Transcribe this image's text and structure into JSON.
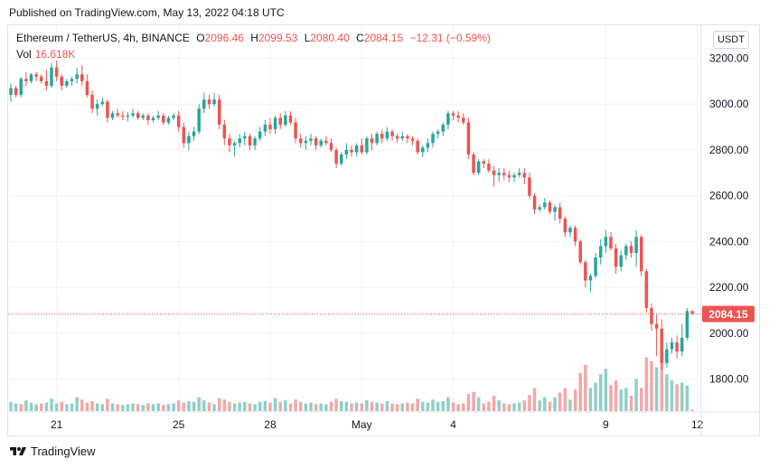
{
  "published_text": "Published on TradingView.com, May 13, 2022 04:18 UTC",
  "header": {
    "symbol": "Ethereum / TetherUS, 4h, BINANCE",
    "o_label": "O",
    "o_value": "2096.46",
    "h_label": "H",
    "h_value": "2099.53",
    "l_label": "L",
    "l_value": "2080.40",
    "c_label": "C",
    "c_value": "2084.15",
    "change": "−12.31 (−0.59%)"
  },
  "volume": {
    "label": "Vol",
    "value": "16.618K"
  },
  "currency_button": "USDT",
  "footer_brand": "TradingView",
  "colors": {
    "up": "#26a69a",
    "down": "#ef5350",
    "up_vol": "#8fcfc9",
    "down_vol": "#f4a7a6",
    "grid": "#f0f3fa",
    "price_line": "#ef5350"
  },
  "chart_data": {
    "type": "candlestick",
    "title": "Ethereum / TetherUS, 4h, BINANCE",
    "y_ticks": [
      {
        "value": 3200,
        "label": "3200.00"
      },
      {
        "value": 3000,
        "label": "3000.00"
      },
      {
        "value": 2800,
        "label": "2800.00"
      },
      {
        "value": 2600,
        "label": "2600.00"
      },
      {
        "value": 2400,
        "label": "2400.00"
      },
      {
        "value": 2200,
        "label": "2200.00"
      },
      {
        "value": 2000,
        "label": "2000.00"
      },
      {
        "value": 1800,
        "label": "1800.00"
      }
    ],
    "ylim": [
      1650,
      3250
    ],
    "x_ticks": [
      {
        "index": 9,
        "label": "21"
      },
      {
        "index": 33,
        "label": "25"
      },
      {
        "index": 51,
        "label": "28"
      },
      {
        "index": 69,
        "label": "May"
      },
      {
        "index": 87,
        "label": "4"
      },
      {
        "index": 117,
        "label": "9"
      },
      {
        "index": 135,
        "label": "12"
      }
    ],
    "last_price": {
      "value": 2084.15,
      "label": "2084.15"
    },
    "candles": [
      [
        3040,
        3090,
        3010,
        3070
      ],
      [
        3070,
        3080,
        3030,
        3040
      ],
      [
        3040,
        3120,
        3030,
        3110
      ],
      [
        3110,
        3140,
        3080,
        3100
      ],
      [
        3100,
        3135,
        3090,
        3130
      ],
      [
        3130,
        3140,
        3100,
        3120
      ],
      [
        3120,
        3130,
        3090,
        3100
      ],
      [
        3100,
        3150,
        3060,
        3080
      ],
      [
        3080,
        3180,
        3070,
        3160
      ],
      [
        3160,
        3190,
        3100,
        3120
      ],
      [
        3120,
        3130,
        3060,
        3080
      ],
      [
        3080,
        3110,
        3070,
        3100
      ],
      [
        3100,
        3120,
        3080,
        3110
      ],
      [
        3110,
        3160,
        3090,
        3130
      ],
      [
        3130,
        3170,
        3080,
        3100
      ],
      [
        3100,
        3130,
        3030,
        3040
      ],
      [
        3040,
        3060,
        2960,
        2980
      ],
      [
        2980,
        3020,
        2950,
        3000
      ],
      [
        3000,
        3030,
        2990,
        3010
      ],
      [
        3010,
        3020,
        2920,
        2940
      ],
      [
        2940,
        2970,
        2930,
        2960
      ],
      [
        2960,
        2980,
        2940,
        2950
      ],
      [
        2950,
        2970,
        2930,
        2945
      ],
      [
        2945,
        2965,
        2925,
        2950
      ],
      [
        2950,
        2980,
        2940,
        2960
      ],
      [
        2960,
        2970,
        2930,
        2940
      ],
      [
        2940,
        2960,
        2930,
        2950
      ],
      [
        2950,
        2960,
        2910,
        2930
      ],
      [
        2930,
        2950,
        2920,
        2940
      ],
      [
        2940,
        2970,
        2930,
        2950
      ],
      [
        2950,
        2960,
        2910,
        2920
      ],
      [
        2920,
        2950,
        2910,
        2940
      ],
      [
        2940,
        2960,
        2930,
        2950
      ],
      [
        2950,
        2970,
        2880,
        2900
      ],
      [
        2900,
        2920,
        2810,
        2830
      ],
      [
        2830,
        2880,
        2800,
        2860
      ],
      [
        2860,
        2900,
        2840,
        2880
      ],
      [
        2880,
        3000,
        2870,
        2980
      ],
      [
        2980,
        3050,
        2960,
        3020
      ],
      [
        3020,
        3040,
        2980,
        3000
      ],
      [
        3000,
        3050,
        2990,
        3020
      ],
      [
        3020,
        3040,
        2890,
        2910
      ],
      [
        2910,
        2930,
        2820,
        2850
      ],
      [
        2850,
        2870,
        2790,
        2820
      ],
      [
        2820,
        2840,
        2770,
        2830
      ],
      [
        2830,
        2870,
        2810,
        2850
      ],
      [
        2850,
        2880,
        2820,
        2860
      ],
      [
        2860,
        2870,
        2800,
        2820
      ],
      [
        2820,
        2860,
        2800,
        2850
      ],
      [
        2850,
        2900,
        2840,
        2880
      ],
      [
        2880,
        2930,
        2860,
        2910
      ],
      [
        2910,
        2940,
        2870,
        2890
      ],
      [
        2890,
        2950,
        2870,
        2940
      ],
      [
        2940,
        2960,
        2890,
        2910
      ],
      [
        2910,
        2970,
        2900,
        2950
      ],
      [
        2950,
        2970,
        2910,
        2920
      ],
      [
        2920,
        2940,
        2830,
        2850
      ],
      [
        2850,
        2870,
        2810,
        2830
      ],
      [
        2830,
        2860,
        2800,
        2840
      ],
      [
        2840,
        2870,
        2820,
        2850
      ],
      [
        2850,
        2860,
        2800,
        2820
      ],
      [
        2820,
        2850,
        2810,
        2840
      ],
      [
        2840,
        2860,
        2820,
        2830
      ],
      [
        2830,
        2850,
        2790,
        2800
      ],
      [
        2800,
        2810,
        2720,
        2740
      ],
      [
        2740,
        2790,
        2730,
        2780
      ],
      [
        2780,
        2830,
        2760,
        2800
      ],
      [
        2800,
        2820,
        2770,
        2790
      ],
      [
        2790,
        2830,
        2770,
        2820
      ],
      [
        2820,
        2850,
        2780,
        2790
      ],
      [
        2790,
        2860,
        2780,
        2850
      ],
      [
        2850,
        2870,
        2800,
        2830
      ],
      [
        2830,
        2880,
        2820,
        2870
      ],
      [
        2870,
        2890,
        2830,
        2850
      ],
      [
        2850,
        2900,
        2840,
        2880
      ],
      [
        2880,
        2890,
        2840,
        2860
      ],
      [
        2860,
        2870,
        2830,
        2850
      ],
      [
        2850,
        2880,
        2840,
        2860
      ],
      [
        2860,
        2870,
        2830,
        2850
      ],
      [
        2850,
        2860,
        2820,
        2840
      ],
      [
        2840,
        2850,
        2780,
        2790
      ],
      [
        2790,
        2820,
        2770,
        2810
      ],
      [
        2810,
        2850,
        2790,
        2830
      ],
      [
        2830,
        2880,
        2810,
        2870
      ],
      [
        2870,
        2890,
        2850,
        2880
      ],
      [
        2880,
        2920,
        2860,
        2910
      ],
      [
        2910,
        2970,
        2890,
        2960
      ],
      [
        2960,
        2970,
        2930,
        2950
      ],
      [
        2950,
        2970,
        2920,
        2940
      ],
      [
        2940,
        2960,
        2910,
        2920
      ],
      [
        2920,
        2940,
        2760,
        2780
      ],
      [
        2780,
        2790,
        2690,
        2700
      ],
      [
        2700,
        2760,
        2690,
        2750
      ],
      [
        2750,
        2760,
        2720,
        2740
      ],
      [
        2740,
        2760,
        2700,
        2710
      ],
      [
        2710,
        2730,
        2640,
        2690
      ],
      [
        2690,
        2720,
        2660,
        2700
      ],
      [
        2700,
        2720,
        2670,
        2690
      ],
      [
        2690,
        2710,
        2660,
        2680
      ],
      [
        2680,
        2700,
        2660,
        2690
      ],
      [
        2690,
        2720,
        2680,
        2700
      ],
      [
        2700,
        2720,
        2650,
        2680
      ],
      [
        2680,
        2700,
        2590,
        2600
      ],
      [
        2600,
        2610,
        2520,
        2540
      ],
      [
        2540,
        2560,
        2530,
        2550
      ],
      [
        2550,
        2590,
        2540,
        2570
      ],
      [
        2570,
        2580,
        2520,
        2530
      ],
      [
        2530,
        2560,
        2490,
        2550
      ],
      [
        2550,
        2570,
        2480,
        2500
      ],
      [
        2500,
        2510,
        2420,
        2440
      ],
      [
        2440,
        2470,
        2420,
        2460
      ],
      [
        2460,
        2470,
        2380,
        2400
      ],
      [
        2400,
        2410,
        2300,
        2310
      ],
      [
        2310,
        2320,
        2200,
        2230
      ],
      [
        2230,
        2260,
        2180,
        2250
      ],
      [
        2250,
        2350,
        2240,
        2330
      ],
      [
        2330,
        2410,
        2300,
        2380
      ],
      [
        2380,
        2450,
        2350,
        2420
      ],
      [
        2420,
        2440,
        2360,
        2370
      ],
      [
        2370,
        2390,
        2260,
        2290
      ],
      [
        2290,
        2360,
        2270,
        2340
      ],
      [
        2340,
        2390,
        2320,
        2380
      ],
      [
        2380,
        2400,
        2330,
        2350
      ],
      [
        2350,
        2450,
        2290,
        2420
      ],
      [
        2420,
        2430,
        2250,
        2270
      ],
      [
        2270,
        2280,
        2090,
        2110
      ],
      [
        2110,
        2130,
        2010,
        2040
      ],
      [
        2040,
        2080,
        1900,
        2020
      ],
      [
        2020,
        2060,
        1840,
        1870
      ],
      [
        1870,
        1960,
        1850,
        1930
      ],
      [
        1930,
        1980,
        1910,
        1960
      ],
      [
        1960,
        1990,
        1890,
        1920
      ],
      [
        1920,
        2040,
        1900,
        1980
      ],
      [
        1980,
        2110,
        1970,
        2096.46
      ],
      [
        2096.46,
        2099.53,
        2080.4,
        2084.15
      ]
    ],
    "volumes": [
      [
        12,
        1
      ],
      [
        10,
        1
      ],
      [
        9,
        0
      ],
      [
        14,
        1
      ],
      [
        11,
        1
      ],
      [
        9,
        1
      ],
      [
        10,
        0
      ],
      [
        11,
        1
      ],
      [
        16,
        1
      ],
      [
        10,
        1
      ],
      [
        12,
        0
      ],
      [
        9,
        1
      ],
      [
        10,
        1
      ],
      [
        18,
        1
      ],
      [
        15,
        0
      ],
      [
        11,
        0
      ],
      [
        13,
        0
      ],
      [
        10,
        1
      ],
      [
        9,
        1
      ],
      [
        16,
        0
      ],
      [
        10,
        1
      ],
      [
        9,
        0
      ],
      [
        8,
        1
      ],
      [
        9,
        1
      ],
      [
        10,
        1
      ],
      [
        9,
        0
      ],
      [
        8,
        1
      ],
      [
        10,
        0
      ],
      [
        9,
        1
      ],
      [
        10,
        1
      ],
      [
        8,
        0
      ],
      [
        9,
        1
      ],
      [
        10,
        1
      ],
      [
        14,
        0
      ],
      [
        11,
        0
      ],
      [
        13,
        1
      ],
      [
        12,
        1
      ],
      [
        18,
        1
      ],
      [
        14,
        1
      ],
      [
        11,
        0
      ],
      [
        9,
        1
      ],
      [
        17,
        0
      ],
      [
        15,
        0
      ],
      [
        12,
        0
      ],
      [
        10,
        1
      ],
      [
        11,
        1
      ],
      [
        12,
        1
      ],
      [
        10,
        0
      ],
      [
        9,
        1
      ],
      [
        12,
        1
      ],
      [
        13,
        1
      ],
      [
        11,
        0
      ],
      [
        17,
        1
      ],
      [
        12,
        0
      ],
      [
        14,
        1
      ],
      [
        10,
        0
      ],
      [
        15,
        0
      ],
      [
        12,
        0
      ],
      [
        10,
        1
      ],
      [
        11,
        1
      ],
      [
        9,
        0
      ],
      [
        10,
        1
      ],
      [
        9,
        1
      ],
      [
        12,
        0
      ],
      [
        16,
        0
      ],
      [
        13,
        1
      ],
      [
        12,
        1
      ],
      [
        10,
        0
      ],
      [
        11,
        1
      ],
      [
        10,
        0
      ],
      [
        14,
        1
      ],
      [
        12,
        0
      ],
      [
        11,
        1
      ],
      [
        10,
        0
      ],
      [
        13,
        1
      ],
      [
        10,
        0
      ],
      [
        9,
        0
      ],
      [
        10,
        1
      ],
      [
        11,
        0
      ],
      [
        10,
        0
      ],
      [
        16,
        0
      ],
      [
        12,
        1
      ],
      [
        11,
        1
      ],
      [
        15,
        1
      ],
      [
        12,
        1
      ],
      [
        13,
        1
      ],
      [
        18,
        1
      ],
      [
        11,
        0
      ],
      [
        9,
        0
      ],
      [
        10,
        0
      ],
      [
        22,
        0
      ],
      [
        25,
        0
      ],
      [
        18,
        1
      ],
      [
        10,
        0
      ],
      [
        12,
        0
      ],
      [
        20,
        0
      ],
      [
        14,
        1
      ],
      [
        10,
        0
      ],
      [
        9,
        0
      ],
      [
        10,
        1
      ],
      [
        11,
        1
      ],
      [
        14,
        0
      ],
      [
        21,
        0
      ],
      [
        30,
        0
      ],
      [
        14,
        1
      ],
      [
        18,
        1
      ],
      [
        12,
        0
      ],
      [
        18,
        1
      ],
      [
        24,
        0
      ],
      [
        30,
        0
      ],
      [
        15,
        1
      ],
      [
        28,
        0
      ],
      [
        50,
        0
      ],
      [
        60,
        0
      ],
      [
        30,
        1
      ],
      [
        37,
        1
      ],
      [
        48,
        1
      ],
      [
        55,
        1
      ],
      [
        34,
        0
      ],
      [
        40,
        0
      ],
      [
        28,
        1
      ],
      [
        30,
        1
      ],
      [
        20,
        0
      ],
      [
        42,
        1
      ],
      [
        30,
        0
      ],
      [
        70,
        0
      ],
      [
        65,
        0
      ],
      [
        57,
        1
      ],
      [
        76,
        0
      ],
      [
        48,
        1
      ],
      [
        40,
        1
      ],
      [
        35,
        0
      ],
      [
        37,
        1
      ],
      [
        33,
        1
      ],
      [
        2,
        0
      ]
    ]
  }
}
